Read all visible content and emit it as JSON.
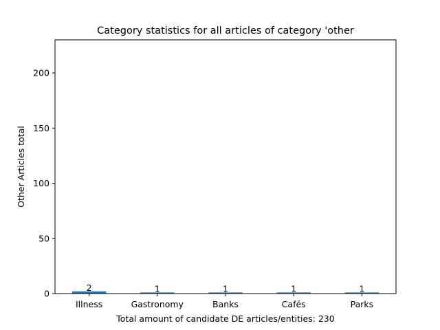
{
  "chart_data": {
    "type": "bar",
    "title": "Category statistics for all articles of category 'other",
    "xlabel": "Total amount of candidate DE articles/entities: 230",
    "ylabel": "Other Articles total",
    "categories": [
      "Illness",
      "Gastronomy",
      "Banks",
      "Cafés",
      "Parks"
    ],
    "values": [
      2,
      1,
      1,
      1,
      1
    ],
    "data_labels": [
      "2",
      "1",
      "1",
      "1",
      "1"
    ],
    "ylim": [
      0,
      230
    ],
    "yticks": [
      0,
      50,
      100,
      150,
      200
    ],
    "grid": false,
    "legend": "none",
    "bar_color": "#1f77b4"
  }
}
